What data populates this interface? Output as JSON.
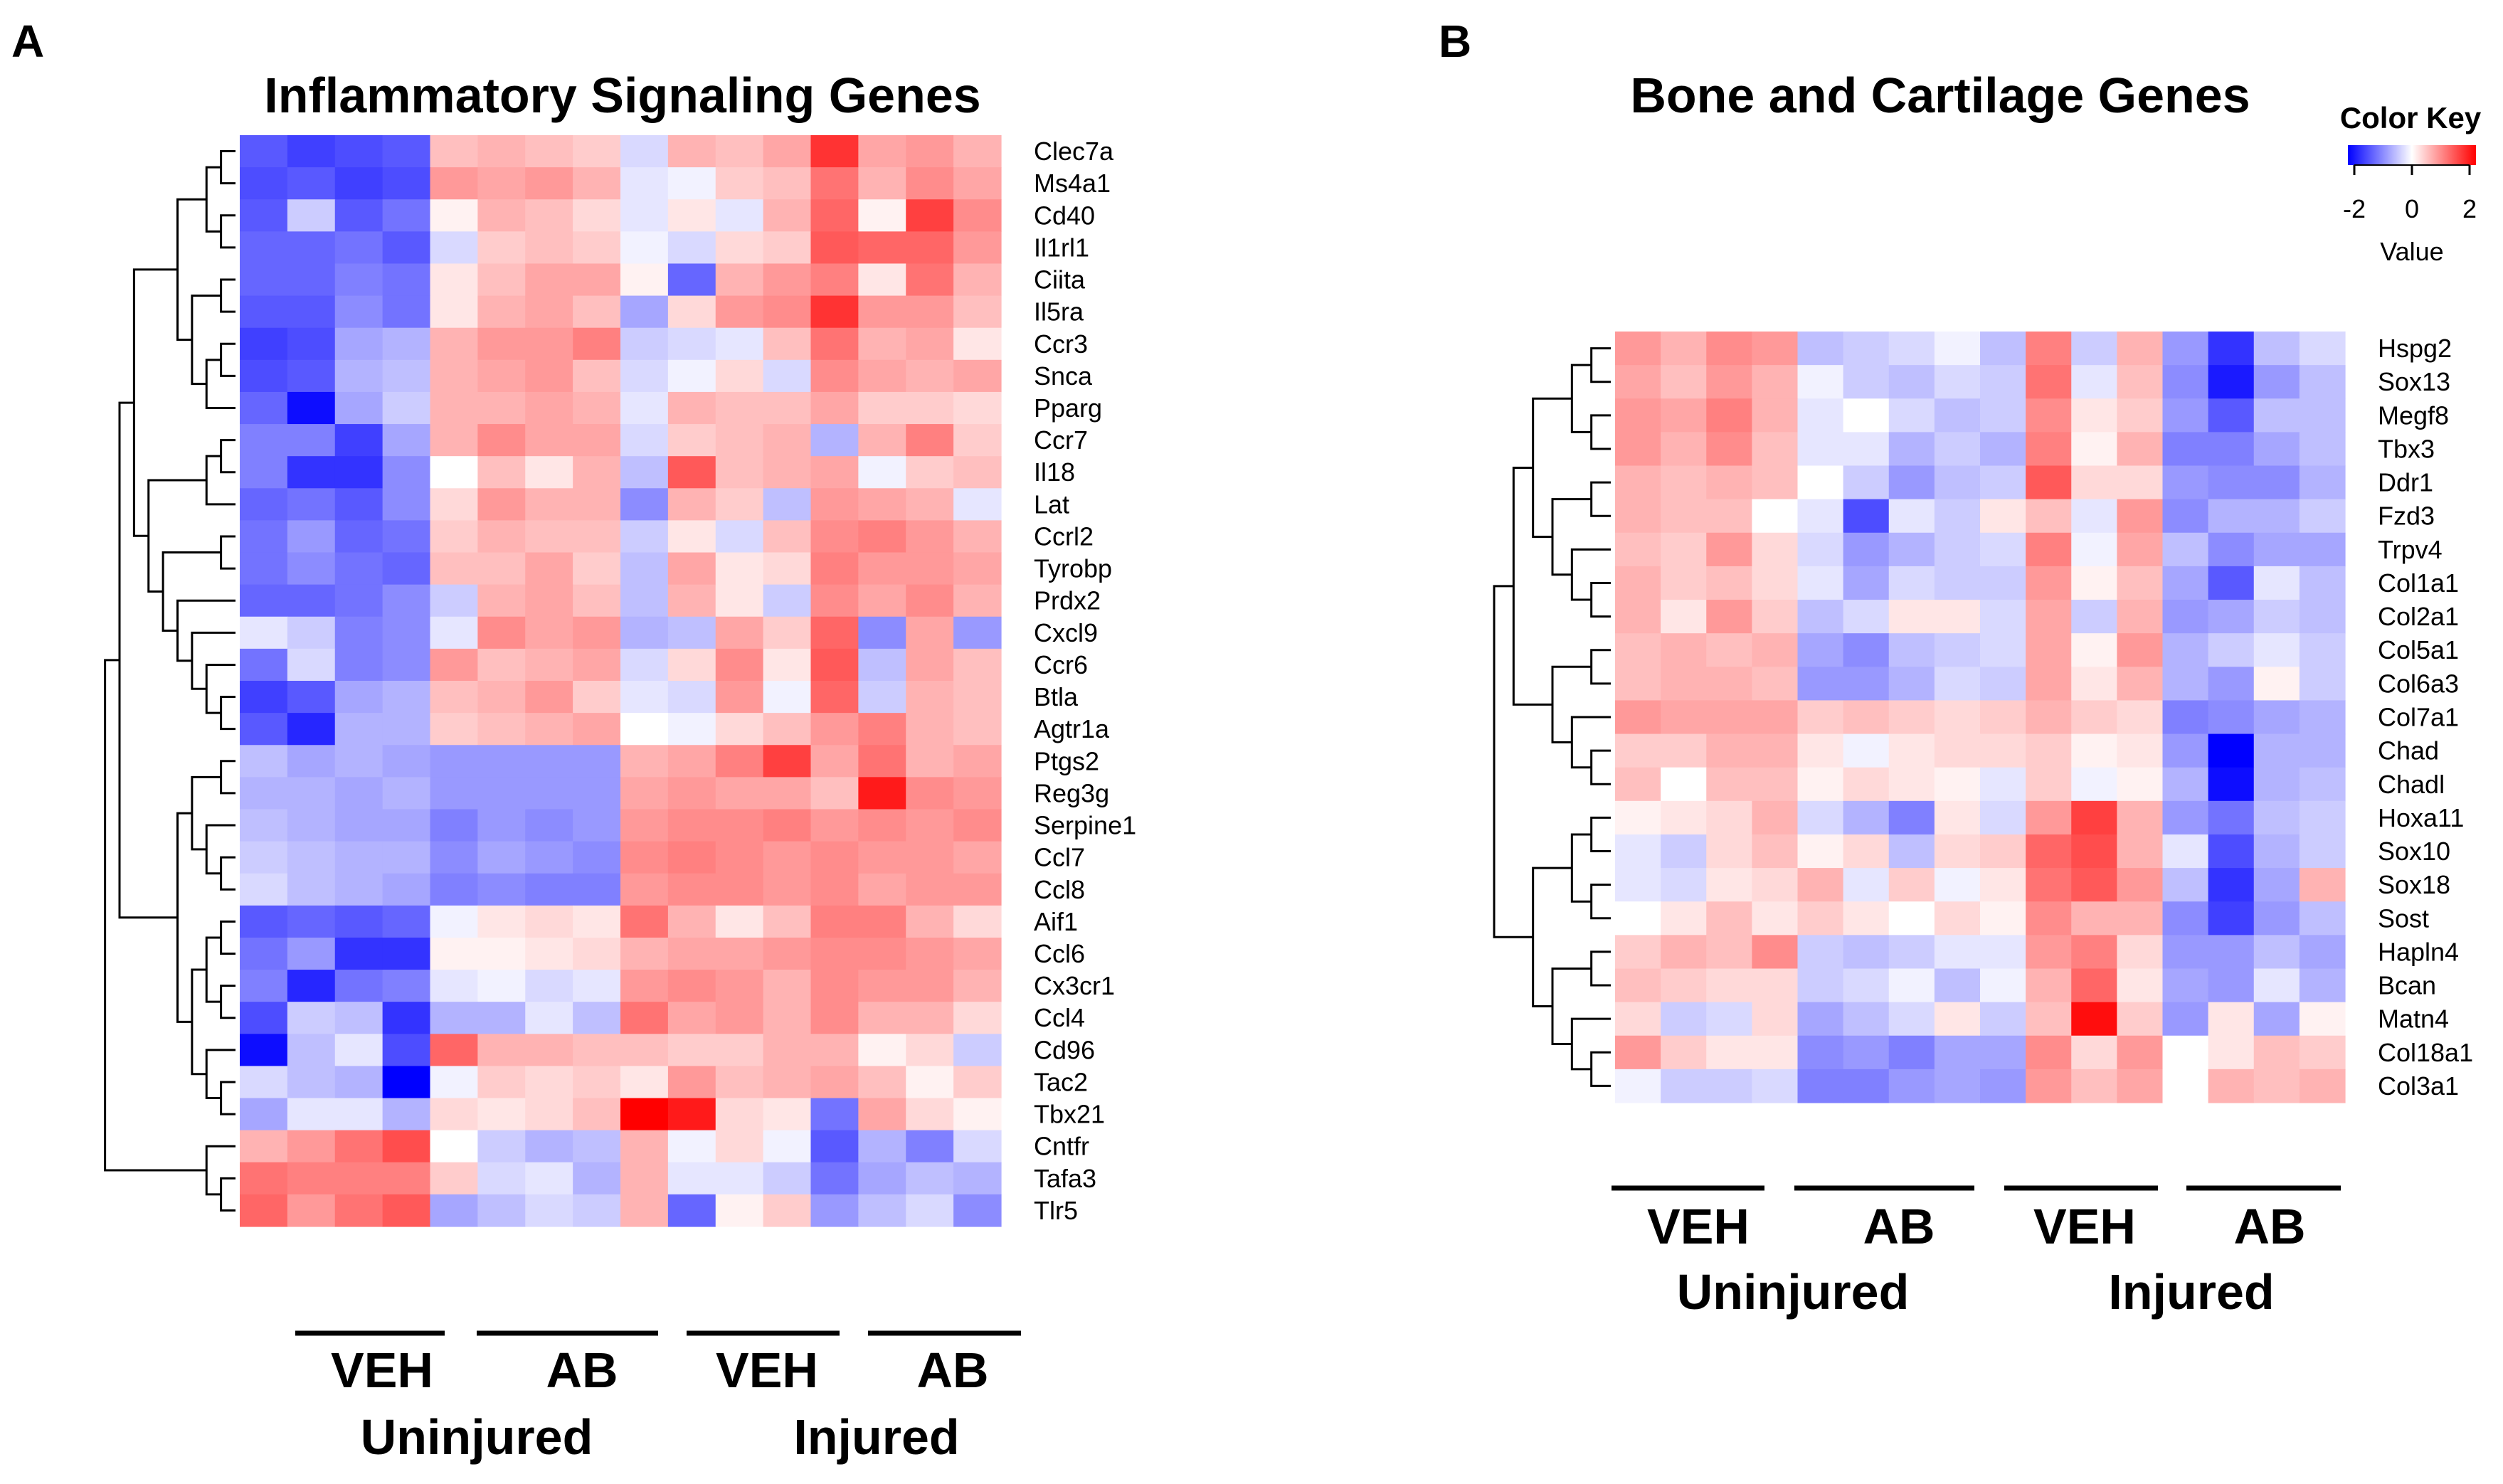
{
  "panel_a": {
    "letter": "A",
    "title": "Inflammatory Signaling Genes",
    "group_labels": [
      "VEH",
      "AB",
      "VEH",
      "AB"
    ],
    "condition_labels": [
      "Uninjured",
      "Injured"
    ]
  },
  "panel_b": {
    "letter": "B",
    "title": "Bone and Cartilage Genes",
    "group_labels": [
      "VEH",
      "AB",
      "VEH",
      "AB"
    ],
    "condition_labels": [
      "Uninjured",
      "Injured"
    ]
  },
  "color_key": {
    "title": "Color Key",
    "ticks": [
      "-2",
      "0",
      "2"
    ],
    "value_label": "Value",
    "low_color": "#0000ff",
    "mid_color": "#ffffff",
    "high_color": "#ff0000"
  },
  "chart_data": [
    {
      "type": "heatmap",
      "title": "Inflammatory Signaling Genes",
      "value_range": [
        -2,
        2
      ],
      "columns_per_group": 4,
      "column_groups": [
        "Uninjured VEH",
        "Uninjured AB",
        "Injured VEH",
        "Injured AB"
      ],
      "rows": [
        "Clec7a",
        "Ms4a1",
        "Cd40",
        "Il1rl1",
        "Ciita",
        "Il5ra",
        "Ccr3",
        "Snca",
        "Pparg",
        "Ccr7",
        "Il18",
        "Lat",
        "Ccrl2",
        "Tyrobp",
        "Prdx2",
        "Cxcl9",
        "Ccr6",
        "Btla",
        "Agtr1a",
        "Ptgs2",
        "Reg3g",
        "Serpine1",
        "Ccl7",
        "Ccl8",
        "Aif1",
        "Ccl6",
        "Cx3cr1",
        "Ccl4",
        "Cd96",
        "Tac2",
        "Tbx21",
        "Cntfr",
        "Tafa3",
        "Tlr5"
      ],
      "values": [
        [
          -1.3,
          -1.5,
          -1.4,
          -1.3,
          0.5,
          0.6,
          0.5,
          0.4,
          -0.3,
          0.6,
          0.5,
          0.7,
          1.6,
          0.7,
          0.8,
          0.6
        ],
        [
          -1.4,
          -1.3,
          -1.5,
          -1.4,
          0.8,
          0.7,
          0.8,
          0.6,
          -0.2,
          -0.1,
          0.4,
          0.5,
          1.1,
          0.6,
          0.9,
          0.7
        ],
        [
          -1.3,
          -0.4,
          -1.3,
          -1.1,
          0.1,
          0.6,
          0.5,
          0.3,
          -0.2,
          0.2,
          -0.2,
          0.6,
          1.2,
          0.1,
          1.5,
          0.9
        ],
        [
          -1.2,
          -1.2,
          -1.1,
          -1.3,
          -0.3,
          0.4,
          0.5,
          0.4,
          -0.1,
          -0.3,
          0.3,
          0.4,
          1.3,
          1.2,
          1.2,
          0.8
        ],
        [
          -1.2,
          -1.2,
          -1.0,
          -1.1,
          0.2,
          0.5,
          0.7,
          0.7,
          0.1,
          -1.2,
          0.6,
          0.8,
          1.0,
          0.2,
          1.1,
          0.6
        ],
        [
          -1.3,
          -1.3,
          -0.9,
          -1.1,
          0.2,
          0.6,
          0.7,
          0.5,
          -0.7,
          0.3,
          0.8,
          0.9,
          1.6,
          0.8,
          0.8,
          0.5
        ],
        [
          -1.5,
          -1.4,
          -0.7,
          -0.6,
          0.6,
          0.8,
          0.8,
          1.0,
          -0.4,
          -0.3,
          -0.2,
          0.5,
          1.1,
          0.6,
          0.7,
          0.2
        ],
        [
          -1.4,
          -1.3,
          -0.6,
          -0.5,
          0.6,
          0.7,
          0.8,
          0.5,
          -0.3,
          -0.1,
          0.3,
          -0.3,
          0.9,
          0.7,
          0.6,
          0.7
        ],
        [
          -1.2,
          -1.9,
          -0.7,
          -0.4,
          0.6,
          0.6,
          0.7,
          0.6,
          -0.2,
          0.6,
          0.5,
          0.5,
          0.7,
          0.4,
          0.4,
          0.3
        ],
        [
          -1.0,
          -1.0,
          -1.5,
          -0.7,
          0.6,
          0.9,
          0.7,
          0.7,
          -0.3,
          0.4,
          0.5,
          0.6,
          -0.6,
          0.6,
          1.0,
          0.4
        ],
        [
          -1.0,
          -1.6,
          -1.6,
          -0.9,
          0.0,
          0.5,
          0.2,
          0.6,
          -0.5,
          1.3,
          0.5,
          0.6,
          0.7,
          -0.1,
          0.4,
          0.5
        ],
        [
          -1.2,
          -1.1,
          -1.3,
          -0.9,
          0.3,
          0.8,
          0.6,
          0.6,
          -0.9,
          0.6,
          0.4,
          -0.5,
          0.8,
          0.7,
          0.6,
          -0.2
        ],
        [
          -1.1,
          -0.8,
          -1.2,
          -1.1,
          0.4,
          0.6,
          0.5,
          0.5,
          -0.4,
          0.2,
          -0.3,
          0.5,
          0.9,
          1.0,
          0.8,
          0.6
        ],
        [
          -1.1,
          -0.9,
          -1.1,
          -1.2,
          0.5,
          0.5,
          0.7,
          0.4,
          -0.5,
          0.7,
          0.2,
          0.3,
          1.0,
          0.8,
          0.8,
          0.7
        ],
        [
          -1.2,
          -1.2,
          -1.1,
          -0.9,
          -0.4,
          0.6,
          0.7,
          0.5,
          -0.5,
          0.6,
          0.2,
          -0.4,
          0.9,
          0.7,
          0.9,
          0.6
        ],
        [
          -0.2,
          -0.4,
          -1.0,
          -0.9,
          -0.2,
          0.9,
          0.7,
          0.8,
          -0.6,
          -0.5,
          0.7,
          0.4,
          1.2,
          -0.9,
          0.7,
          -0.8
        ],
        [
          -1.1,
          -0.3,
          -1.0,
          -0.9,
          0.8,
          0.5,
          0.6,
          0.7,
          -0.3,
          0.3,
          0.9,
          0.2,
          1.3,
          -0.5,
          0.7,
          0.5
        ],
        [
          -1.5,
          -1.3,
          -0.7,
          -0.6,
          0.5,
          0.6,
          0.8,
          0.4,
          -0.2,
          -0.3,
          0.8,
          -0.1,
          1.2,
          -0.4,
          0.6,
          0.5
        ],
        [
          -1.3,
          -1.7,
          -0.6,
          -0.6,
          0.4,
          0.5,
          0.6,
          0.7,
          0.0,
          -0.1,
          0.3,
          0.5,
          0.8,
          1.0,
          0.6,
          0.5
        ],
        [
          -0.5,
          -0.7,
          -0.6,
          -0.7,
          -0.8,
          -0.8,
          -0.8,
          -0.8,
          0.6,
          0.7,
          1.0,
          1.5,
          0.7,
          1.1,
          0.6,
          0.7
        ],
        [
          -0.6,
          -0.6,
          -0.7,
          -0.6,
          -0.8,
          -0.8,
          -0.8,
          -0.8,
          0.7,
          0.8,
          0.7,
          0.7,
          0.5,
          1.8,
          0.9,
          0.8
        ],
        [
          -0.5,
          -0.6,
          -0.7,
          -0.7,
          -1.0,
          -0.8,
          -0.9,
          -0.8,
          0.8,
          0.9,
          0.9,
          1.0,
          0.8,
          0.9,
          0.8,
          0.9
        ],
        [
          -0.4,
          -0.5,
          -0.6,
          -0.6,
          -0.9,
          -0.7,
          -0.8,
          -0.9,
          0.9,
          1.0,
          0.9,
          0.8,
          0.9,
          0.8,
          0.8,
          0.7
        ],
        [
          -0.3,
          -0.5,
          -0.6,
          -0.7,
          -1.0,
          -0.9,
          -1.0,
          -1.0,
          0.8,
          0.9,
          0.9,
          0.8,
          0.9,
          0.7,
          0.8,
          0.8
        ],
        [
          -1.3,
          -1.2,
          -1.3,
          -1.2,
          -0.1,
          0.2,
          0.3,
          0.2,
          1.1,
          0.6,
          0.2,
          0.5,
          1.0,
          1.0,
          0.6,
          0.3
        ],
        [
          -1.1,
          -0.8,
          -1.6,
          -1.6,
          0.1,
          0.1,
          0.2,
          0.3,
          0.6,
          0.7,
          0.7,
          0.8,
          0.9,
          0.9,
          0.8,
          0.7
        ],
        [
          -1.0,
          -1.7,
          -1.1,
          -1.0,
          -0.2,
          -0.1,
          -0.3,
          -0.2,
          0.8,
          0.9,
          0.8,
          0.6,
          0.9,
          0.8,
          0.8,
          0.6
        ],
        [
          -1.4,
          -0.4,
          -0.5,
          -1.6,
          -0.6,
          -0.6,
          -0.2,
          -0.5,
          1.1,
          0.7,
          0.8,
          0.6,
          0.9,
          0.6,
          0.6,
          0.3
        ],
        [
          -1.9,
          -0.5,
          -0.2,
          -1.4,
          1.2,
          0.6,
          0.6,
          0.5,
          0.5,
          0.4,
          0.4,
          0.6,
          0.6,
          0.1,
          0.3,
          -0.4
        ],
        [
          -0.3,
          -0.5,
          -0.6,
          -2.0,
          -0.1,
          0.4,
          0.3,
          0.4,
          0.2,
          0.8,
          0.5,
          0.6,
          0.7,
          0.5,
          0.1,
          0.4
        ],
        [
          -0.7,
          -0.2,
          -0.2,
          -0.6,
          0.3,
          0.2,
          0.3,
          0.5,
          2.0,
          1.8,
          0.3,
          0.2,
          -1.1,
          0.7,
          0.3,
          0.1
        ],
        [
          0.6,
          0.8,
          1.1,
          1.4,
          0.0,
          -0.4,
          -0.6,
          -0.5,
          0.6,
          -0.1,
          0.3,
          -0.1,
          -1.3,
          -0.6,
          -1.0,
          -0.3
        ],
        [
          1.1,
          1.0,
          1.0,
          1.0,
          0.4,
          -0.3,
          -0.2,
          -0.6,
          0.6,
          -0.2,
          -0.2,
          -0.4,
          -1.1,
          -0.7,
          -0.5,
          -0.6
        ],
        [
          1.2,
          0.8,
          1.1,
          1.3,
          -0.7,
          -0.5,
          -0.3,
          -0.4,
          0.6,
          -1.2,
          0.1,
          0.4,
          -0.8,
          -0.5,
          -0.3,
          -0.9
        ]
      ]
    },
    {
      "type": "heatmap",
      "title": "Bone and Cartilage Genes",
      "value_range": [
        -2,
        2
      ],
      "columns_per_group": 4,
      "column_groups": [
        "Uninjured VEH",
        "Uninjured AB",
        "Injured VEH",
        "Injured AB"
      ],
      "rows": [
        "Hspg2",
        "Sox13",
        "Megf8",
        "Tbx3",
        "Ddr1",
        "Fzd3",
        "Trpv4",
        "Col1a1",
        "Col2a1",
        "Col5a1",
        "Col6a3",
        "Col7a1",
        "Chad",
        "Chadl",
        "Hoxa11",
        "Sox10",
        "Sox18",
        "Sost",
        "Hapln4",
        "Bcan",
        "Matn4",
        "Col18a1",
        "Col3a1"
      ],
      "values": [
        [
          0.8,
          0.6,
          0.9,
          0.8,
          -0.5,
          -0.4,
          -0.3,
          -0.1,
          -0.5,
          1.0,
          -0.4,
          0.6,
          -0.8,
          -1.6,
          -0.5,
          -0.3
        ],
        [
          0.7,
          0.5,
          0.8,
          0.6,
          -0.1,
          -0.4,
          -0.5,
          -0.3,
          -0.4,
          1.1,
          -0.2,
          0.5,
          -0.9,
          -1.8,
          -0.8,
          -0.5
        ],
        [
          0.8,
          0.7,
          1.0,
          0.6,
          -0.2,
          0.0,
          -0.3,
          -0.5,
          -0.4,
          0.9,
          0.2,
          0.4,
          -0.8,
          -1.3,
          -0.5,
          -0.5
        ],
        [
          0.8,
          0.6,
          0.9,
          0.5,
          -0.2,
          -0.2,
          -0.6,
          -0.4,
          -0.6,
          1.0,
          0.1,
          0.6,
          -1.0,
          -1.0,
          -0.7,
          -0.5
        ],
        [
          0.6,
          0.5,
          0.6,
          0.5,
          0.0,
          -0.4,
          -0.8,
          -0.5,
          -0.4,
          1.3,
          0.3,
          0.3,
          -0.8,
          -0.9,
          -0.9,
          -0.6
        ],
        [
          0.6,
          0.5,
          0.5,
          0.0,
          -0.2,
          -1.4,
          -0.2,
          -0.4,
          0.2,
          0.5,
          -0.2,
          0.8,
          -0.9,
          -0.6,
          -0.6,
          -0.4
        ],
        [
          0.5,
          0.4,
          0.8,
          0.3,
          -0.3,
          -0.8,
          -0.6,
          -0.4,
          -0.3,
          1.0,
          -0.1,
          0.7,
          -0.5,
          -0.9,
          -0.7,
          -0.7
        ],
        [
          0.6,
          0.4,
          0.5,
          0.3,
          -0.2,
          -0.7,
          -0.3,
          -0.4,
          -0.4,
          0.8,
          0.1,
          0.5,
          -0.7,
          -1.3,
          -0.2,
          -0.5
        ],
        [
          0.6,
          0.2,
          0.8,
          0.4,
          -0.5,
          -0.3,
          0.2,
          0.2,
          -0.3,
          0.7,
          -0.4,
          0.6,
          -0.8,
          -0.7,
          -0.4,
          -0.5
        ],
        [
          0.5,
          0.6,
          0.5,
          0.6,
          -0.7,
          -0.9,
          -0.5,
          -0.4,
          -0.3,
          0.7,
          0.1,
          0.8,
          -0.6,
          -0.4,
          -0.2,
          -0.4
        ],
        [
          0.5,
          0.6,
          0.6,
          0.5,
          -0.8,
          -0.8,
          -0.6,
          -0.3,
          -0.4,
          0.7,
          0.2,
          0.6,
          -0.6,
          -0.8,
          0.1,
          -0.4
        ],
        [
          0.8,
          0.7,
          0.7,
          0.7,
          0.4,
          0.5,
          0.4,
          0.3,
          0.4,
          0.6,
          0.4,
          0.3,
          -1.0,
          -0.9,
          -0.7,
          -0.6
        ],
        [
          0.4,
          0.4,
          0.6,
          0.6,
          0.2,
          -0.1,
          0.2,
          0.3,
          0.3,
          0.4,
          0.1,
          0.2,
          -0.8,
          -2.0,
          -0.6,
          -0.6
        ],
        [
          0.5,
          0.0,
          0.5,
          0.5,
          0.1,
          0.3,
          0.2,
          0.1,
          -0.2,
          0.4,
          -0.1,
          0.1,
          -0.6,
          -1.9,
          -0.6,
          -0.5
        ],
        [
          0.1,
          0.2,
          0.3,
          0.6,
          -0.3,
          -0.6,
          -1.0,
          0.2,
          -0.3,
          0.8,
          1.5,
          0.6,
          -0.8,
          -1.1,
          -0.5,
          -0.4
        ],
        [
          -0.2,
          -0.4,
          0.3,
          0.5,
          0.1,
          0.3,
          -0.5,
          0.3,
          0.4,
          1.2,
          1.4,
          0.6,
          -0.2,
          -1.4,
          -0.6,
          -0.4
        ],
        [
          -0.2,
          -0.3,
          0.2,
          0.3,
          0.6,
          -0.2,
          0.4,
          -0.1,
          0.2,
          1.1,
          1.3,
          0.8,
          -0.5,
          -1.6,
          -0.7,
          0.6
        ],
        [
          0.0,
          0.2,
          0.5,
          0.2,
          0.4,
          0.2,
          0.0,
          0.3,
          0.1,
          0.9,
          0.6,
          0.6,
          -0.9,
          -1.5,
          -0.8,
          -0.5
        ],
        [
          0.4,
          0.6,
          0.5,
          0.9,
          -0.4,
          -0.5,
          -0.4,
          -0.2,
          -0.2,
          0.8,
          1.0,
          0.3,
          -0.8,
          -0.8,
          -0.5,
          -0.7
        ],
        [
          0.5,
          0.4,
          0.3,
          0.3,
          -0.4,
          -0.3,
          -0.1,
          -0.5,
          -0.1,
          0.6,
          1.2,
          0.2,
          -0.7,
          -0.8,
          -0.2,
          -0.6
        ],
        [
          0.3,
          -0.4,
          -0.3,
          0.3,
          -0.7,
          -0.5,
          -0.3,
          0.2,
          -0.4,
          0.5,
          1.9,
          0.4,
          -0.8,
          0.2,
          -0.7,
          0.1
        ],
        [
          0.8,
          0.4,
          0.2,
          0.2,
          -0.9,
          -0.8,
          -1.0,
          -0.7,
          -0.7,
          0.9,
          0.3,
          0.8,
          0.0,
          0.2,
          0.5,
          0.4
        ],
        [
          -0.1,
          -0.4,
          -0.4,
          -0.3,
          -1.0,
          -1.0,
          -0.8,
          -0.7,
          -0.8,
          0.8,
          0.5,
          0.7,
          0.0,
          0.6,
          0.5,
          0.6
        ]
      ]
    }
  ]
}
